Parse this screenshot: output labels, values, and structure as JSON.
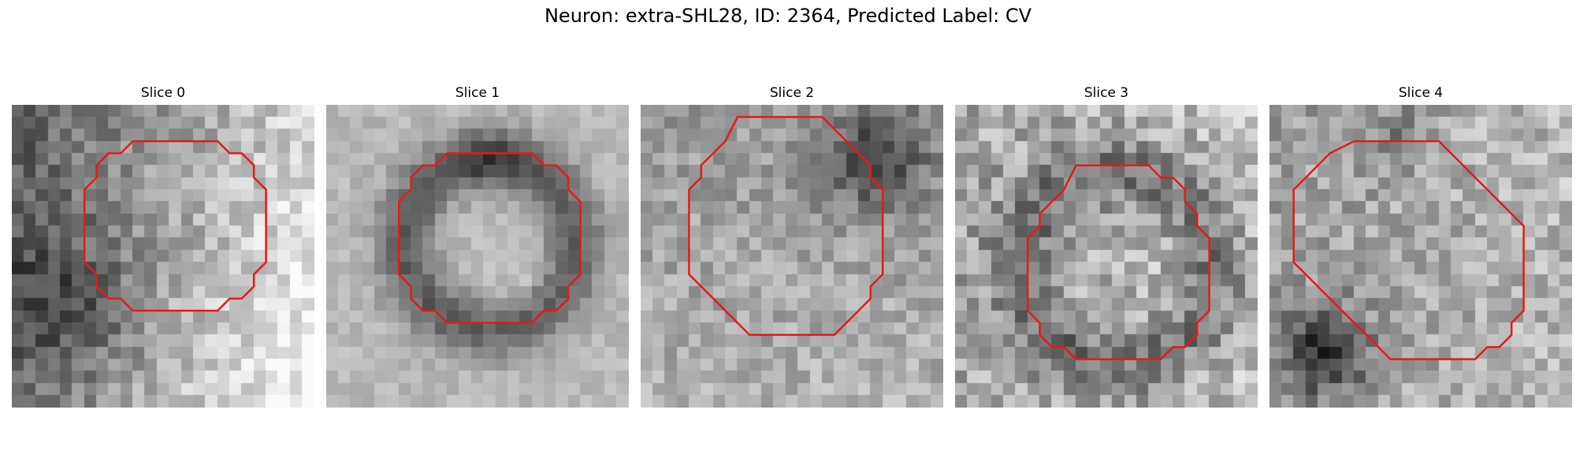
{
  "figure": {
    "title": "Neuron: extra-SHL28, ID: 2364, Predicted Label: CV"
  },
  "slices": [
    {
      "label": "Slice 0",
      "contour_color": "#e31a1c",
      "contour": [
        [
          10,
          3
        ],
        [
          17,
          3
        ],
        [
          18,
          4
        ],
        [
          19,
          4
        ],
        [
          20,
          5
        ],
        [
          20,
          6
        ],
        [
          21,
          7
        ],
        [
          21,
          13
        ],
        [
          20,
          14
        ],
        [
          20,
          15
        ],
        [
          19,
          16
        ],
        [
          18,
          16
        ],
        [
          17,
          17
        ],
        [
          10,
          17
        ],
        [
          9,
          16
        ],
        [
          8,
          16
        ],
        [
          7,
          15
        ],
        [
          7,
          14
        ],
        [
          6,
          13
        ],
        [
          6,
          7
        ],
        [
          7,
          6
        ],
        [
          7,
          5
        ],
        [
          8,
          4
        ],
        [
          9,
          4
        ]
      ]
    },
    {
      "label": "Slice 1",
      "contour_color": "#e31a1c",
      "contour": [
        [
          10,
          4
        ],
        [
          17,
          4
        ],
        [
          18,
          5
        ],
        [
          19,
          5
        ],
        [
          20,
          6
        ],
        [
          20,
          7
        ],
        [
          21,
          8
        ],
        [
          21,
          14
        ],
        [
          20,
          15
        ],
        [
          20,
          16
        ],
        [
          19,
          17
        ],
        [
          18,
          17
        ],
        [
          17,
          18
        ],
        [
          10,
          18
        ],
        [
          9,
          17
        ],
        [
          8,
          17
        ],
        [
          7,
          16
        ],
        [
          7,
          15
        ],
        [
          6,
          14
        ],
        [
          6,
          8
        ],
        [
          7,
          7
        ],
        [
          7,
          6
        ],
        [
          8,
          5
        ],
        [
          9,
          5
        ]
      ]
    },
    {
      "label": "Slice 2",
      "contour_color": "#e31a1c",
      "contour": [
        [
          8,
          1
        ],
        [
          15,
          1
        ],
        [
          16,
          2
        ],
        [
          17,
          3
        ],
        [
          18,
          4
        ],
        [
          19,
          5
        ],
        [
          19,
          6
        ],
        [
          20,
          7
        ],
        [
          20,
          14
        ],
        [
          19,
          15
        ],
        [
          19,
          16
        ],
        [
          18,
          17
        ],
        [
          17,
          18
        ],
        [
          16,
          19
        ],
        [
          9,
          19
        ],
        [
          8,
          18
        ],
        [
          7,
          17
        ],
        [
          6,
          16
        ],
        [
          5,
          15
        ],
        [
          4,
          14
        ],
        [
          4,
          7
        ],
        [
          5,
          6
        ],
        [
          5,
          5
        ],
        [
          6,
          4
        ],
        [
          7,
          3
        ]
      ]
    },
    {
      "label": "Slice 3",
      "contour_color": "#e31a1c",
      "contour": [
        [
          10,
          5
        ],
        [
          16,
          5
        ],
        [
          17,
          6
        ],
        [
          18,
          6
        ],
        [
          19,
          7
        ],
        [
          19,
          8
        ],
        [
          20,
          9
        ],
        [
          20,
          10
        ],
        [
          21,
          11
        ],
        [
          21,
          17
        ],
        [
          20,
          18
        ],
        [
          20,
          19
        ],
        [
          19,
          20
        ],
        [
          18,
          20
        ],
        [
          17,
          21
        ],
        [
          10,
          21
        ],
        [
          9,
          20
        ],
        [
          8,
          20
        ],
        [
          7,
          19
        ],
        [
          7,
          18
        ],
        [
          6,
          17
        ],
        [
          6,
          11
        ],
        [
          7,
          10
        ],
        [
          7,
          9
        ],
        [
          8,
          8
        ],
        [
          9,
          7
        ]
      ]
    },
    {
      "label": "Slice 4",
      "contour_color": "#e31a1c",
      "contour": [
        [
          7,
          3
        ],
        [
          14,
          3
        ],
        [
          15,
          4
        ],
        [
          16,
          5
        ],
        [
          17,
          6
        ],
        [
          18,
          7
        ],
        [
          19,
          8
        ],
        [
          20,
          9
        ],
        [
          21,
          10
        ],
        [
          21,
          17
        ],
        [
          20,
          18
        ],
        [
          20,
          19
        ],
        [
          19,
          20
        ],
        [
          18,
          20
        ],
        [
          17,
          21
        ],
        [
          10,
          21
        ],
        [
          9,
          20
        ],
        [
          8,
          19
        ],
        [
          7,
          18
        ],
        [
          6,
          17
        ],
        [
          5,
          16
        ],
        [
          4,
          15
        ],
        [
          3,
          14
        ],
        [
          2,
          13
        ],
        [
          2,
          7
        ],
        [
          3,
          6
        ],
        [
          4,
          5
        ],
        [
          5,
          4
        ]
      ]
    }
  ],
  "grid_size": 25,
  "colormap": "gray"
}
